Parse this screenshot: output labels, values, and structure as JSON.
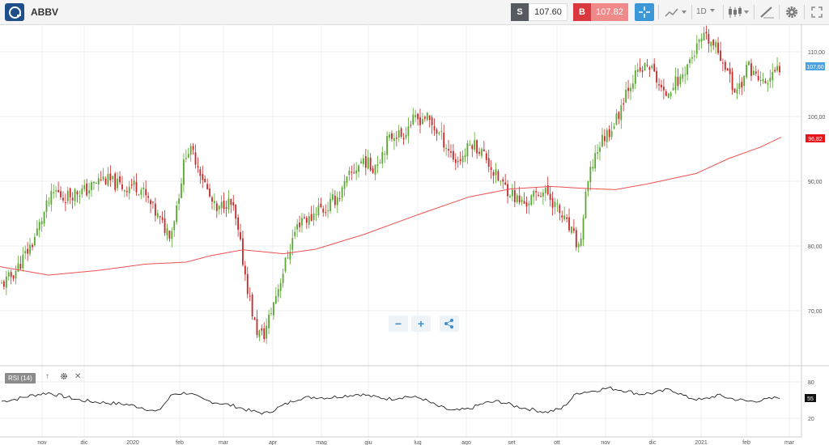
{
  "toolbar": {
    "symbol": "ABBV",
    "sell_label": "S",
    "sell_price": "107.60",
    "buy_label": "B",
    "buy_price": "107.82",
    "timeframe": "1D",
    "icons": [
      "logo-icon",
      "crosshair-icon",
      "line-chart-type-icon",
      "candlestick-icon",
      "drawing-tools-icon",
      "settings-icon",
      "expand-icon"
    ],
    "accent": "#3c97d6",
    "sell_color": "#555a60",
    "buy_color": "#d9393e"
  },
  "chart_data": [
    {
      "type": "candlestick",
      "symbol": "ABBV",
      "x_ticks": [
        "nov",
        "dic",
        "2020",
        "feb",
        "mar",
        "apr",
        "mag",
        "giu",
        "lug",
        "ago",
        "set",
        "ott",
        "nov",
        "dic",
        "2021",
        "feb",
        "mar"
      ],
      "y_ticks": [
        "110,00",
        "100,00",
        "90,00",
        "80,00",
        "70,00"
      ],
      "ylim": [
        62,
        114
      ],
      "grid": true,
      "last_price_label": "107,60",
      "ma_label": "96,82",
      "up_color": "#5aa832",
      "down_color": "#c62828",
      "ma_color": "#f05050",
      "close_series": [
        74,
        75,
        76.5,
        78.5,
        80.5,
        83.5,
        86.5,
        88.5,
        87.5,
        88,
        88.5,
        88.5,
        89.5,
        90.5,
        90,
        89.5,
        89,
        89.5,
        89,
        87,
        85,
        83,
        82,
        88,
        95,
        94,
        91,
        87.5,
        85,
        87,
        86,
        80,
        73,
        67,
        66,
        70,
        74,
        78,
        82,
        84.5,
        84,
        86,
        85.5,
        87,
        88,
        90.5,
        92,
        93.5,
        92,
        93.5,
        96,
        97.5,
        97,
        99,
        99.5,
        100,
        98.5,
        97,
        95,
        93,
        94,
        96,
        95,
        93.5,
        91,
        89.5,
        88.5,
        87,
        86.5,
        87.5,
        88.5,
        88,
        86,
        84,
        82,
        79.5,
        89,
        94,
        96.5,
        98,
        100,
        104,
        106,
        107,
        108,
        106,
        103,
        105,
        105.5,
        108,
        110,
        112,
        111.5,
        110,
        108,
        104,
        105,
        108,
        106,
        105,
        106,
        107.6
      ],
      "ma_series": [
        [
          0,
          76.8
        ],
        [
          60,
          75.5
        ],
        [
          120,
          76.2
        ],
        [
          180,
          77.2
        ],
        [
          230,
          77.5
        ],
        [
          260,
          78.5
        ],
        [
          300,
          79.4
        ],
        [
          350,
          78.8
        ],
        [
          390,
          79.5
        ],
        [
          450,
          81.8
        ],
        [
          520,
          85
        ],
        [
          580,
          87.6
        ],
        [
          630,
          88.8
        ],
        [
          680,
          89.2
        ],
        [
          720,
          88.9
        ],
        [
          760,
          88.7
        ],
        [
          800,
          89.6
        ],
        [
          860,
          91.2
        ],
        [
          900,
          93.5
        ],
        [
          940,
          95.3
        ],
        [
          965,
          96.8
        ]
      ]
    },
    {
      "type": "line",
      "indicator": "RSI (14)",
      "y_ticks": [
        "80",
        "20"
      ],
      "last_value": "55",
      "line_color": "#222222"
    }
  ],
  "rsi_label": "RSI (14)"
}
